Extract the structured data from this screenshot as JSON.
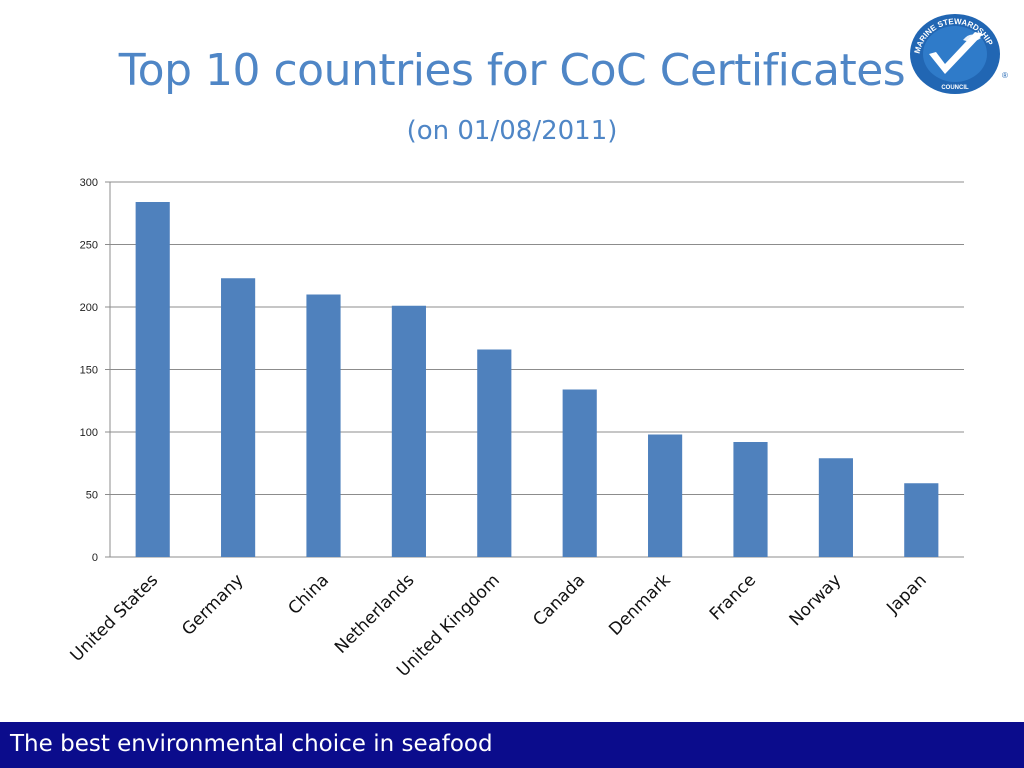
{
  "slide": {
    "title": "Top 10 countries for CoC Certificates",
    "subtitle": "(on 01/08/2011)",
    "footer": "The best environmental choice in seafood"
  },
  "logo": {
    "icon": "msc-logo-icon",
    "arc_text": "MARINE STEWARDSHIP",
    "bottom_text": "COUNCIL",
    "mark": "®",
    "colors": {
      "primary": "#2166b3",
      "check": "#ffffff"
    }
  },
  "colors": {
    "title": "#4f86c6",
    "bar": "#4f81bd",
    "footer": "#0b0c8c",
    "gridline": "#8c8c8c"
  },
  "chart_data": {
    "type": "bar",
    "categories": [
      "United States",
      "Germany",
      "China",
      "Netherlands",
      "United Kingdom",
      "Canada",
      "Denmark",
      "France",
      "Norway",
      "Japan"
    ],
    "values": [
      284,
      223,
      210,
      201,
      166,
      134,
      98,
      92,
      79,
      59
    ],
    "ylim": [
      0,
      300
    ],
    "yticks": [
      0,
      50,
      100,
      150,
      200,
      250,
      300
    ],
    "grid": true,
    "legend": "none"
  }
}
